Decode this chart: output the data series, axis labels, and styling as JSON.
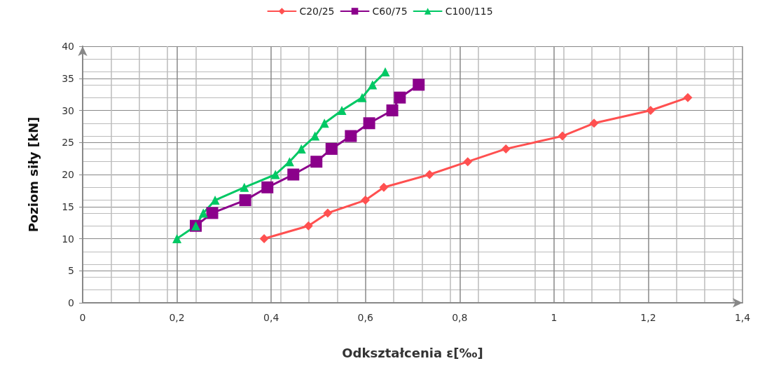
{
  "chart_data": {
    "type": "line",
    "xlabel": "Odkształcenia ε[‰]",
    "ylabel": "Poziom siły [kN]",
    "xlim": [
      0,
      1.4
    ],
    "xticks": [
      0,
      {
        "value": 0.2,
        "label": "0,2"
      },
      {
        "value": 0.4,
        "label": "0,4"
      },
      {
        "value": 0.6,
        "label": "0,6"
      },
      {
        "value": 0.8,
        "label": "0,8"
      },
      1,
      {
        "value": 1.2,
        "label": "1,2"
      },
      {
        "value": 1.4,
        "label": "1,4"
      }
    ],
    "ylim": [
      0,
      40
    ],
    "yticks": [
      0,
      5,
      10,
      15,
      20,
      25,
      30,
      35,
      40
    ],
    "grid": true,
    "legend": "top",
    "line_style": "solid",
    "series": [
      {
        "name": "C20/25",
        "color": "#ff5050",
        "marker": "diamond",
        "x": [
          0.385,
          0.479,
          0.52,
          0.6,
          0.639,
          0.736,
          0.817,
          0.898,
          1.018,
          1.085,
          1.205,
          1.284
        ],
        "values": [
          10,
          12,
          14,
          16,
          18,
          20,
          22,
          24,
          26,
          28,
          30,
          32
        ]
      },
      {
        "name": "C60/75",
        "color": "#8b008b",
        "marker": "square",
        "x": [
          0.24,
          0.275,
          0.345,
          0.392,
          0.447,
          0.496,
          0.528,
          0.569,
          0.608,
          0.657,
          0.673,
          0.713
        ],
        "values": [
          12,
          14,
          16,
          18,
          20,
          22,
          24,
          26,
          28,
          30,
          32,
          34
        ]
      },
      {
        "name": "C100/115",
        "color": "#00c864",
        "marker": "triangle",
        "x": [
          0.2,
          0.24,
          0.256,
          0.281,
          0.343,
          0.409,
          0.439,
          0.464,
          0.493,
          0.513,
          0.55,
          0.593,
          0.615,
          0.642
        ],
        "values": [
          10,
          12,
          14,
          16,
          18,
          20,
          22,
          24,
          26,
          28,
          30,
          32,
          34,
          36
        ]
      }
    ]
  }
}
